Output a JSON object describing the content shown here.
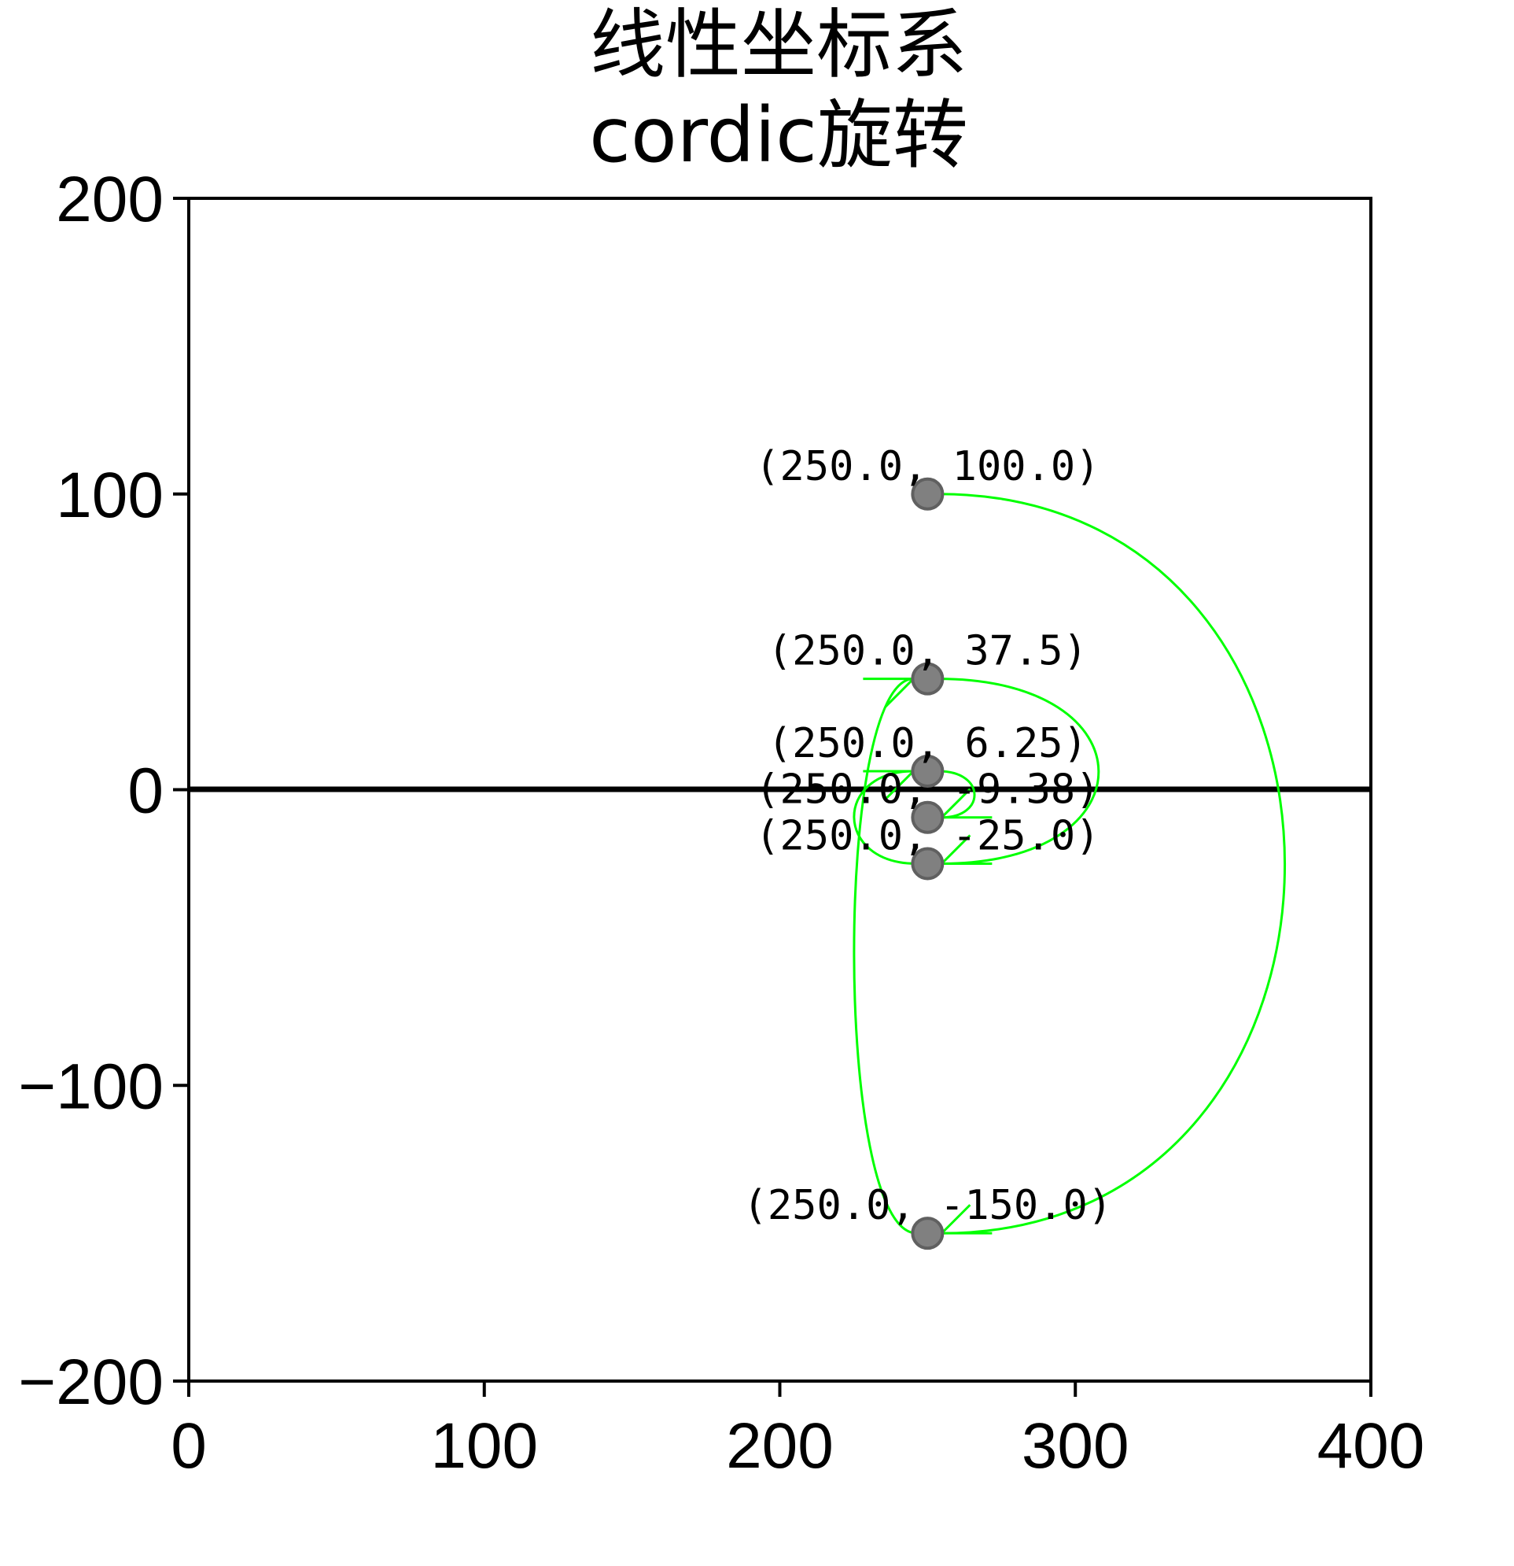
{
  "chart_data": {
    "type": "scatter",
    "title_lines": [
      "线性坐标系",
      "cordic旋转"
    ],
    "xlabel": "",
    "ylabel": "",
    "xlim": [
      0,
      400
    ],
    "ylim": [
      -200,
      200
    ],
    "x_ticks": [
      0,
      100,
      200,
      300,
      400
    ],
    "y_ticks": [
      200,
      100,
      0,
      -100,
      -200
    ],
    "x_tick_labels": [
      "0",
      "100",
      "200",
      "300",
      "400"
    ],
    "y_tick_labels": [
      "200",
      "100",
      "0",
      "−100",
      "−200"
    ],
    "grid": false,
    "reference_line_y": 0,
    "point_color": "#808080",
    "arrow_color": "#00ff00",
    "points": [
      {
        "x": 250.0,
        "y": 100.0,
        "label": "(250.0, 100.0)"
      },
      {
        "x": 250.0,
        "y": -150.0,
        "label": "(250.0, -150.0)"
      },
      {
        "x": 250.0,
        "y": 37.5,
        "label": "(250.0, 37.5)"
      },
      {
        "x": 250.0,
        "y": -25.0,
        "label": "(250.0, -25.0)"
      },
      {
        "x": 250.0,
        "y": 6.25,
        "label": "(250.0, 6.25)"
      },
      {
        "x": 250.0,
        "y": -9.38,
        "label": "(250.0, -9.38)"
      }
    ],
    "arrows": [
      {
        "from": 0,
        "to": 1,
        "side": "right",
        "bulge_x": 332
      },
      {
        "from": 1,
        "to": 2,
        "side": "left",
        "bulge_x": 232
      },
      {
        "from": 2,
        "to": 3,
        "side": "right",
        "bulge_x": 290
      },
      {
        "from": 3,
        "to": 4,
        "side": "left",
        "bulge_x": 232
      },
      {
        "from": 4,
        "to": 5,
        "side": "right",
        "bulge_x": 262
      }
    ]
  }
}
